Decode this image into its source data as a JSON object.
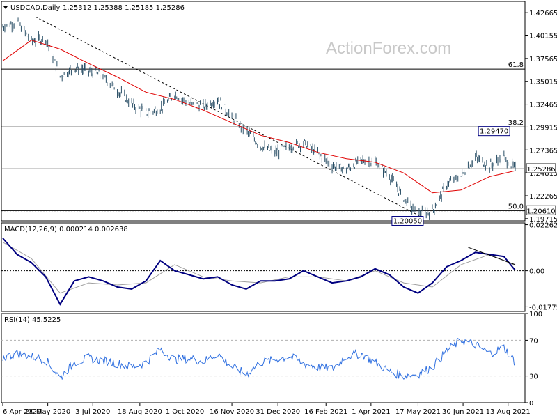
{
  "window": {
    "title": "USDCAD,Daily",
    "ohlc": "1.25312 1.25388 1.25185 1.25286"
  },
  "watermark": "ActionForex.com",
  "colors": {
    "price": "#2a4f66",
    "ma": "#e00000",
    "macd_main": "#000080",
    "macd_signal": "#a0a0a0",
    "rsi": "#3070e0",
    "trendline": "#000000",
    "badge_border": "#000080"
  },
  "chart_data": [
    {
      "type": "line",
      "title": "USDCAD,Daily",
      "y_ticks": [
        "1.42665",
        "1.40155",
        "1.37565",
        "1.35015",
        "1.32465",
        "1.29915",
        "1.27365",
        "1.24815",
        "1.22265",
        "1.19715"
      ],
      "ylim": [
        1.1947,
        1.4392
      ],
      "price_label": "1.25286",
      "level_label": "1.20610",
      "fib_levels": [
        {
          "label": "61.8",
          "value": 1.3638
        },
        {
          "label": "38.2",
          "value": 1.2993
        },
        {
          "label": "50.0",
          "value": 1.2061
        }
      ],
      "annotations": [
        {
          "text": "1.29470",
          "value": 1.2947,
          "date": "2021-08-16"
        },
        {
          "text": "1.20050",
          "value": 1.2005,
          "date": "2021-05-18"
        }
      ],
      "trendline": {
        "from": {
          "date": "2020-05-08",
          "value": 1.422
        },
        "to": {
          "date": "2021-05-18",
          "value": 1.2005
        }
      },
      "series": [
        {
          "kind": "price",
          "x": [
            "2020-04-06",
            "2020-04-20",
            "2020-05-04",
            "2020-05-18",
            "2020-06-01",
            "2020-06-15",
            "2020-06-29",
            "2020-07-13",
            "2020-07-27",
            "2020-08-10",
            "2020-08-24",
            "2020-09-07",
            "2020-09-21",
            "2020-10-05",
            "2020-10-19",
            "2020-11-02",
            "2020-11-16",
            "2020-11-30",
            "2020-12-14",
            "2020-12-28",
            "2021-01-11",
            "2021-01-25",
            "2021-02-08",
            "2021-02-22",
            "2021-03-08",
            "2021-03-22",
            "2021-04-05",
            "2021-04-19",
            "2021-05-03",
            "2021-05-17",
            "2021-05-31",
            "2021-06-14",
            "2021-06-28",
            "2021-07-12",
            "2021-07-26",
            "2021-08-09",
            "2021-08-20"
          ],
          "values": [
            1.411,
            1.416,
            1.395,
            1.398,
            1.356,
            1.365,
            1.362,
            1.356,
            1.34,
            1.325,
            1.315,
            1.32,
            1.336,
            1.325,
            1.322,
            1.33,
            1.31,
            1.295,
            1.278,
            1.271,
            1.277,
            1.282,
            1.27,
            1.256,
            1.252,
            1.262,
            1.26,
            1.245,
            1.22,
            1.202,
            1.205,
            1.235,
            1.245,
            1.265,
            1.256,
            1.265,
            1.2529
          ]
        },
        {
          "kind": "ma",
          "x": [
            "2020-04-06",
            "2020-05-04",
            "2020-06-01",
            "2020-06-29",
            "2020-07-27",
            "2020-08-24",
            "2020-09-21",
            "2020-10-19",
            "2020-11-16",
            "2020-12-14",
            "2021-01-11",
            "2021-02-08",
            "2021-03-08",
            "2021-04-05",
            "2021-05-03",
            "2021-05-31",
            "2021-06-28",
            "2021-07-26",
            "2021-08-20"
          ],
          "values": [
            1.373,
            1.396,
            1.386,
            1.37,
            1.355,
            1.338,
            1.33,
            1.318,
            1.304,
            1.29,
            1.282,
            1.271,
            1.264,
            1.26,
            1.248,
            1.226,
            1.229,
            1.244,
            1.2505
          ]
        }
      ]
    },
    {
      "type": "line",
      "title": "MACD(12,26,9) 0.000214 0.002638",
      "y_ticks": [
        "0.022623",
        "0.00",
        "-0.01775"
      ],
      "ylim": [
        -0.02,
        0.0235
      ],
      "zero_label": "0.00",
      "resistance_line": {
        "from": {
          "date": "2021-07-05",
          "value": 0.0115
        },
        "to": {
          "date": "2021-08-20",
          "value": 0.003
        }
      },
      "series": [
        {
          "name": "MACD(12,26,9)",
          "x": [
            "2020-04-06",
            "2020-04-20",
            "2020-05-04",
            "2020-05-18",
            "2020-06-01",
            "2020-06-15",
            "2020-06-29",
            "2020-07-13",
            "2020-07-27",
            "2020-08-10",
            "2020-08-24",
            "2020-09-07",
            "2020-09-21",
            "2020-10-05",
            "2020-10-19",
            "2020-11-02",
            "2020-11-16",
            "2020-11-30",
            "2020-12-14",
            "2020-12-28",
            "2021-01-11",
            "2021-01-25",
            "2021-02-08",
            "2021-02-22",
            "2021-03-08",
            "2021-03-22",
            "2021-04-05",
            "2021-04-19",
            "2021-05-03",
            "2021-05-17",
            "2021-05-31",
            "2021-06-14",
            "2021-06-28",
            "2021-07-12",
            "2021-07-26",
            "2021-08-09",
            "2021-08-20"
          ],
          "values": [
            0.016,
            0.008,
            0.004,
            -0.003,
            -0.0165,
            -0.005,
            -0.003,
            -0.005,
            -0.008,
            -0.009,
            -0.005,
            0.005,
            0.0,
            -0.002,
            -0.004,
            -0.003,
            -0.007,
            -0.009,
            -0.005,
            -0.005,
            -0.004,
            0.0,
            -0.003,
            -0.006,
            -0.005,
            -0.003,
            0.001,
            -0.002,
            -0.008,
            -0.011,
            -0.006,
            0.002,
            0.005,
            0.009,
            0.008,
            0.007,
            0.0002
          ]
        },
        {
          "name": "Signal",
          "x": [
            "2020-04-06",
            "2020-05-04",
            "2020-06-01",
            "2020-06-29",
            "2020-07-27",
            "2020-08-24",
            "2020-09-21",
            "2020-10-19",
            "2020-11-16",
            "2020-12-14",
            "2021-01-11",
            "2021-02-08",
            "2021-03-08",
            "2021-04-05",
            "2021-05-03",
            "2021-05-31",
            "2021-06-28",
            "2021-07-26",
            "2021-08-20"
          ],
          "values": [
            0.014,
            0.006,
            -0.011,
            -0.006,
            -0.007,
            -0.006,
            0.003,
            -0.003,
            -0.005,
            -0.006,
            -0.003,
            -0.003,
            -0.005,
            0.0,
            -0.006,
            -0.008,
            0.003,
            0.008,
            0.0026
          ]
        }
      ]
    },
    {
      "type": "line",
      "title": "RSI(14) 45.5225",
      "y_ticks": [
        "100",
        "70",
        "30",
        "0"
      ],
      "ylim": [
        0,
        100
      ],
      "levels": [
        70,
        30
      ],
      "series": [
        {
          "name": "RSI(14)",
          "x": [
            "2020-04-06",
            "2020-04-20",
            "2020-05-04",
            "2020-05-18",
            "2020-06-01",
            "2020-06-15",
            "2020-06-29",
            "2020-07-13",
            "2020-07-27",
            "2020-08-10",
            "2020-08-24",
            "2020-09-07",
            "2020-09-21",
            "2020-10-05",
            "2020-10-19",
            "2020-11-02",
            "2020-11-16",
            "2020-11-30",
            "2020-12-14",
            "2020-12-28",
            "2021-01-11",
            "2021-01-25",
            "2021-02-08",
            "2021-02-22",
            "2021-03-08",
            "2021-03-22",
            "2021-04-05",
            "2021-04-19",
            "2021-05-03",
            "2021-05-17",
            "2021-05-31",
            "2021-06-14",
            "2021-06-28",
            "2021-07-12",
            "2021-07-26",
            "2021-08-09",
            "2021-08-20"
          ],
          "values": [
            50,
            55,
            52,
            48,
            28,
            45,
            50,
            47,
            44,
            40,
            45,
            60,
            48,
            50,
            46,
            55,
            40,
            32,
            45,
            48,
            52,
            44,
            40,
            38,
            52,
            55,
            45,
            35,
            30,
            32,
            40,
            58,
            70,
            65,
            55,
            62,
            45.5
          ]
        }
      ]
    }
  ],
  "x_ticks": [
    {
      "label": "6 Apr 2020",
      "date": "2020-04-06"
    },
    {
      "label": "20 May 2020",
      "date": "2020-05-20"
    },
    {
      "label": "3 Jul 2020",
      "date": "2020-07-03"
    },
    {
      "label": "18 Aug 2020",
      "date": "2020-08-18"
    },
    {
      "label": "1 Oct 2020",
      "date": "2020-10-01"
    },
    {
      "label": "16 Nov 2020",
      "date": "2020-11-16"
    },
    {
      "label": "31 Dec 2020",
      "date": "2020-12-31"
    },
    {
      "label": "16 Feb 2021",
      "date": "2021-02-16"
    },
    {
      "label": "1 Apr 2021",
      "date": "2021-04-01"
    },
    {
      "label": "17 May 2021",
      "date": "2021-05-17"
    },
    {
      "label": "30 Jun 2021",
      "date": "2021-06-30"
    },
    {
      "label": "13 Aug 2021",
      "date": "2021-08-13"
    }
  ]
}
